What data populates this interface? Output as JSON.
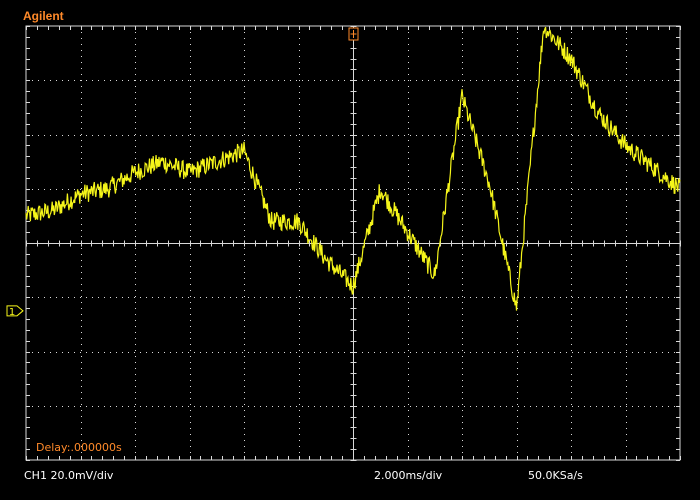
{
  "scope": {
    "brand": "Agilent",
    "channel_label": "CH1 20.0mV/div",
    "timebase_label": "2.000ms/div",
    "sample_rate_label": "50.0KSa/s",
    "delay_label": "Delay:.000000s",
    "channel_marker": "1",
    "colors": {
      "background": "#000000",
      "grid": "#d9d9d9",
      "trace": "#f5f51a",
      "brand": "#ff8a2a",
      "text": "#ffffff",
      "delay": "#ff8a2a"
    }
  },
  "chart_data": {
    "type": "line",
    "title": "",
    "xlabel": "",
    "ylabel": "",
    "xlim": [
      0,
      12
    ],
    "ylim": [
      -4,
      4
    ],
    "x_unit": "divisions",
    "y_unit": "divisions",
    "grid": true,
    "series": [
      {
        "x": [
          0,
          0.5,
          1,
          1.5,
          2,
          2.5,
          3,
          3.5,
          4,
          4.5,
          5,
          5.5,
          6,
          6.5,
          7,
          7.5,
          8,
          8.5,
          9,
          9.5,
          10,
          10.5,
          11,
          11.5,
          12
        ],
        "values": [
          0.5,
          0.6,
          0.9,
          1.0,
          1.3,
          1.5,
          1.3,
          1.5,
          1.7,
          0.4,
          0.4,
          -0.3,
          -0.8,
          1.0,
          0.2,
          -0.6,
          2.7,
          1.1,
          -1.2,
          4.0,
          3.4,
          2.4,
          1.8,
          1.4,
          1.0
        ]
      }
    ]
  }
}
